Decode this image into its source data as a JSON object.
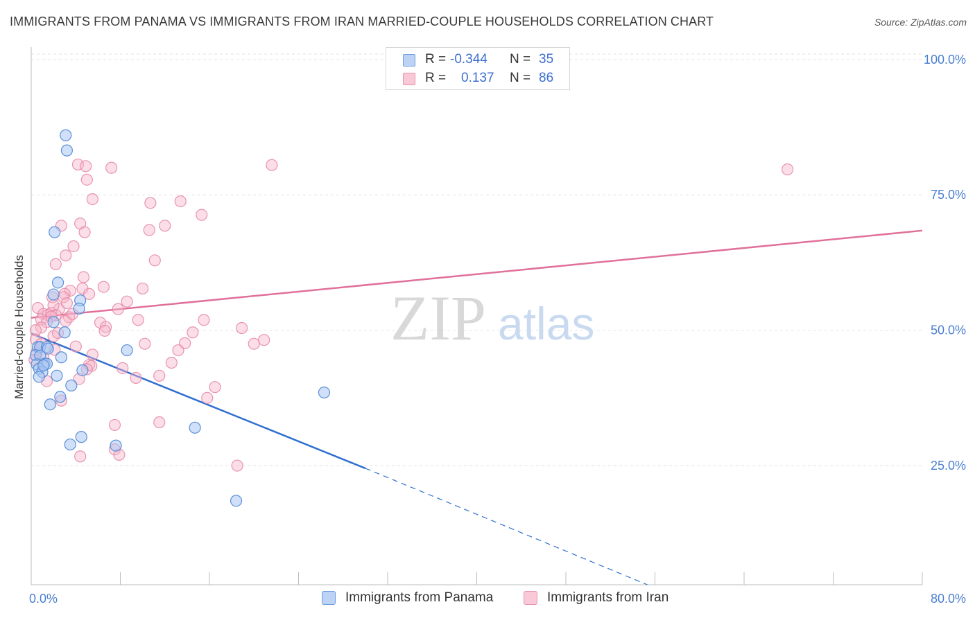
{
  "header": {
    "title": "IMMIGRANTS FROM PANAMA VS IMMIGRANTS FROM IRAN MARRIED-COUPLE HOUSEHOLDS CORRELATION CHART",
    "source": "Source: ZipAtlas.com"
  },
  "watermark": {
    "zip": "ZIP",
    "atlas": "atlas"
  },
  "legend": {
    "rows": [
      {
        "r_label": "R =",
        "r_value": "-0.344",
        "n_label": "N =",
        "n_value": "35"
      },
      {
        "r_label": "R =",
        "r_value": "0.137",
        "n_label": "N =",
        "n_value": "86"
      }
    ]
  },
  "colors": {
    "panama_fill": "#a9c6f2",
    "panama_stroke": "#5b8fd8",
    "panama_line": "#2f6fd0",
    "iran_fill": "#f6b6ca",
    "iran_stroke": "#e68aa8",
    "iran_line": "#e0709a",
    "axis_label": "#4a7fd0",
    "grid": "#e2e2e2"
  },
  "chart_data": {
    "type": "scatter",
    "title": "IMMIGRANTS FROM PANAMA VS IMMIGRANTS FROM IRAN MARRIED-COUPLE HOUSEHOLDS CORRELATION CHART",
    "xlabel": "",
    "ylabel": "Married-couple Households",
    "xlim": [
      0,
      80
    ],
    "ylim": [
      3,
      101
    ],
    "x_tick_labels": [
      "0.0%",
      "80.0%"
    ],
    "y_ticks": [
      25,
      50,
      75,
      100
    ],
    "y_tick_labels": [
      "25.0%",
      "50.0%",
      "75.0%",
      "100.0%"
    ],
    "legend_position": "top-center",
    "bottom_legend": [
      "Immigrants from Panama",
      "Immigrants from Iran"
    ],
    "series": [
      {
        "name": "Immigrants from Panama",
        "r": -0.344,
        "n": 35,
        "trend": {
          "x0": 0,
          "y0": 49.4,
          "x1": 30,
          "y1": 24.5,
          "dashed_to_x": 58.5,
          "dashed_to_y": 0.3
        },
        "points": [
          [
            3.1,
            86.0
          ],
          [
            3.2,
            83.2
          ],
          [
            2.1,
            68.1
          ],
          [
            2.4,
            58.8
          ],
          [
            2.0,
            56.6
          ],
          [
            4.4,
            55.5
          ],
          [
            4.3,
            54.0
          ],
          [
            3.0,
            49.6
          ],
          [
            2.0,
            51.5
          ],
          [
            0.6,
            46.9
          ],
          [
            0.8,
            46.9
          ],
          [
            1.4,
            46.9
          ],
          [
            1.5,
            46.6
          ],
          [
            8.6,
            46.3
          ],
          [
            0.4,
            45.4
          ],
          [
            0.8,
            45.3
          ],
          [
            2.7,
            45.0
          ],
          [
            0.5,
            43.7
          ],
          [
            1.2,
            43.8
          ],
          [
            1.4,
            43.8
          ],
          [
            0.7,
            42.9
          ],
          [
            1.0,
            42.3
          ],
          [
            4.6,
            42.6
          ],
          [
            2.3,
            41.6
          ],
          [
            0.7,
            41.4
          ],
          [
            26.3,
            38.5
          ],
          [
            3.6,
            39.8
          ],
          [
            2.6,
            37.7
          ],
          [
            1.7,
            36.3
          ],
          [
            4.5,
            30.3
          ],
          [
            14.7,
            32.0
          ],
          [
            3.5,
            28.9
          ],
          [
            7.6,
            28.7
          ],
          [
            18.4,
            18.5
          ],
          [
            1.1,
            43.5
          ]
        ]
      },
      {
        "name": "Immigrants from Iran",
        "r": 0.137,
        "n": 86,
        "trend": {
          "x0": 0,
          "y0": 52.3,
          "x1": 80,
          "y1": 68.4
        },
        "points": [
          [
            4.2,
            80.6
          ],
          [
            4.9,
            80.3
          ],
          [
            7.2,
            80.0
          ],
          [
            21.6,
            80.5
          ],
          [
            67.9,
            79.7
          ],
          [
            5.0,
            77.8
          ],
          [
            5.5,
            74.2
          ],
          [
            10.7,
            73.5
          ],
          [
            13.4,
            73.8
          ],
          [
            15.3,
            71.3
          ],
          [
            2.7,
            69.3
          ],
          [
            4.4,
            69.7
          ],
          [
            12.0,
            69.3
          ],
          [
            10.6,
            68.5
          ],
          [
            4.8,
            68.1
          ],
          [
            3.8,
            65.5
          ],
          [
            3.1,
            63.8
          ],
          [
            11.1,
            62.9
          ],
          [
            2.2,
            62.2
          ],
          [
            4.7,
            59.8
          ],
          [
            10.0,
            57.7
          ],
          [
            3.5,
            57.3
          ],
          [
            4.6,
            57.7
          ],
          [
            3.0,
            56.7
          ],
          [
            1.9,
            56.1
          ],
          [
            5.2,
            56.7
          ],
          [
            2.9,
            56.1
          ],
          [
            8.6,
            55.3
          ],
          [
            2.5,
            53.9
          ],
          [
            3.4,
            52.4
          ],
          [
            0.6,
            54.1
          ],
          [
            1.1,
            53.0
          ],
          [
            1.5,
            52.8
          ],
          [
            1.8,
            53.2
          ],
          [
            2.2,
            52.8
          ],
          [
            7.8,
            53.9
          ],
          [
            1.8,
            52.5
          ],
          [
            0.9,
            52.0
          ],
          [
            1.4,
            51.5
          ],
          [
            3.1,
            51.7
          ],
          [
            3.7,
            53.0
          ],
          [
            6.2,
            51.4
          ],
          [
            9.6,
            51.9
          ],
          [
            15.5,
            51.9
          ],
          [
            0.9,
            50.5
          ],
          [
            6.7,
            50.6
          ],
          [
            0.4,
            50.0
          ],
          [
            6.6,
            49.9
          ],
          [
            14.5,
            49.6
          ],
          [
            18.9,
            50.4
          ],
          [
            0.4,
            48.3
          ],
          [
            2.0,
            48.9
          ],
          [
            10.2,
            47.5
          ],
          [
            13.8,
            47.6
          ],
          [
            20.9,
            48.2
          ],
          [
            20.0,
            47.5
          ],
          [
            13.2,
            46.3
          ],
          [
            2.1,
            46.4
          ],
          [
            0.5,
            45.9
          ],
          [
            5.5,
            45.5
          ],
          [
            0.3,
            44.5
          ],
          [
            12.6,
            44.0
          ],
          [
            5.2,
            43.6
          ],
          [
            5.4,
            43.4
          ],
          [
            8.2,
            43.0
          ],
          [
            5.0,
            42.8
          ],
          [
            11.5,
            41.6
          ],
          [
            9.4,
            41.2
          ],
          [
            1.4,
            40.6
          ],
          [
            4.3,
            41.0
          ],
          [
            16.5,
            39.5
          ],
          [
            15.8,
            37.5
          ],
          [
            2.7,
            37.0
          ],
          [
            7.5,
            32.5
          ],
          [
            11.5,
            33.0
          ],
          [
            7.5,
            28.0
          ],
          [
            7.9,
            27.0
          ],
          [
            4.4,
            26.7
          ],
          [
            18.5,
            25.0
          ],
          [
            0.9,
            47.5
          ],
          [
            2.4,
            49.5
          ],
          [
            4.0,
            47.0
          ],
          [
            1.1,
            45.0
          ],
          [
            3.2,
            55.0
          ],
          [
            2.0,
            54.6
          ],
          [
            6.5,
            58.0
          ]
        ]
      }
    ]
  }
}
